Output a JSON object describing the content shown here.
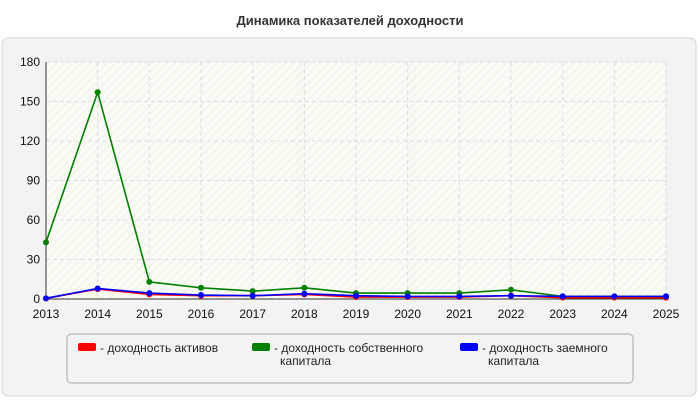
{
  "chart_data": {
    "type": "line",
    "title": "Динамика показателей доходности",
    "xlabel": "",
    "ylabel": "",
    "x": [
      2013,
      2014,
      2015,
      2016,
      2017,
      2018,
      2019,
      2020,
      2021,
      2022,
      2023,
      2024,
      2025
    ],
    "ylim": [
      0,
      180
    ],
    "yticks": [
      0,
      30,
      60,
      90,
      120,
      150,
      180
    ],
    "grid": true,
    "legend_position": "bottom",
    "series": [
      {
        "name": "- доходность активов",
        "color": "#ff0000",
        "values": [
          0.5,
          7.5,
          3.5,
          2.5,
          2.5,
          3.5,
          1.5,
          1.5,
          1.5,
          2.5,
          1.0,
          1.0,
          1.0
        ]
      },
      {
        "name": "- доходность собственного капитала",
        "color": "#008000",
        "values": [
          43,
          157,
          13,
          8.5,
          6,
          8.5,
          4.5,
          4.5,
          4.5,
          7,
          2,
          2,
          2
        ]
      },
      {
        "name": "- доходность заемного капитала",
        "color": "#0000ff",
        "values": [
          0.5,
          8,
          4.5,
          3,
          2.5,
          4,
          2.5,
          2,
          2,
          2.5,
          2,
          2,
          2
        ]
      }
    ]
  }
}
